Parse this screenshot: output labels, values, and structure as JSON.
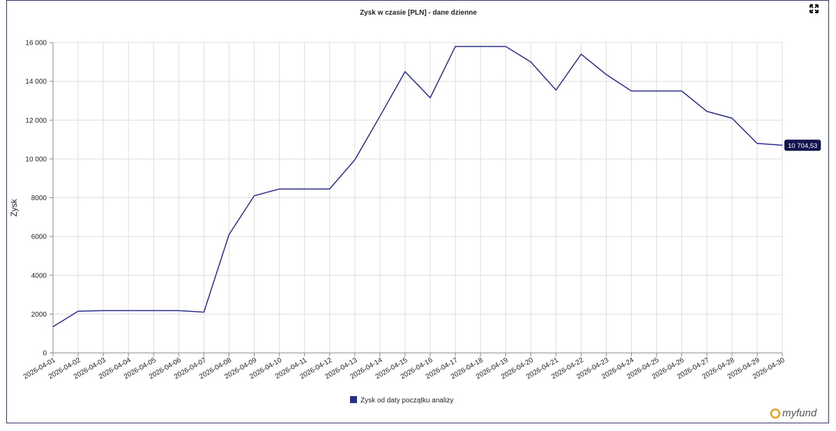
{
  "chart_data": {
    "type": "line",
    "title": "Zysk w czasie [PLN] - dane dzienne",
    "y_label": "Zysk",
    "x": [
      "2026-04-01",
      "2026-04-02",
      "2026-04-03",
      "2026-04-04",
      "2026-04-05",
      "2026-04-06",
      "2026-04-07",
      "2026-04-08",
      "2026-04-09",
      "2026-04-10",
      "2026-04-11",
      "2026-04-12",
      "2026-04-13",
      "2026-04-14",
      "2026-04-15",
      "2026-04-16",
      "2026-04-17",
      "2026-04-18",
      "2026-04-19",
      "2026-04-20",
      "2026-04-21",
      "2026-04-22",
      "2026-04-23",
      "2026-04-24",
      "2026-04-25",
      "2026-04-26",
      "2026-04-27",
      "2026-04-28",
      "2026-04-29",
      "2026-04-30"
    ],
    "series": [
      {
        "name": "Zysk od daty początku analizy",
        "color": "#2b2b8f",
        "values": [
          1350,
          2150,
          2180,
          2180,
          2180,
          2180,
          2100,
          6100,
          8100,
          8450,
          8450,
          8450,
          9950,
          12200,
          14500,
          13150,
          15800,
          15800,
          15800,
          15000,
          13550,
          15400,
          14350,
          13500,
          13500,
          13500,
          12450,
          12100,
          10800,
          10704.53
        ],
        "value_labels": [
          null,
          null,
          null,
          null,
          null,
          null,
          null,
          null,
          null,
          null,
          null,
          null,
          null,
          null,
          null,
          null,
          null,
          null,
          null,
          null,
          null,
          null,
          null,
          null,
          null,
          null,
          null,
          null,
          null,
          "10 704,53"
        ]
      }
    ],
    "ylim": [
      0,
      16000
    ],
    "yticks": [
      0,
      2000,
      4000,
      6000,
      8000,
      {
        "value": 10000,
        "label": "10 000"
      },
      {
        "value": 12000,
        "label": "12 000"
      },
      {
        "value": 14000,
        "label": "14 000"
      },
      {
        "value": 16000,
        "label": "16 000"
      }
    ],
    "grid": true,
    "legend": "bottom",
    "logo": "myfund"
  }
}
